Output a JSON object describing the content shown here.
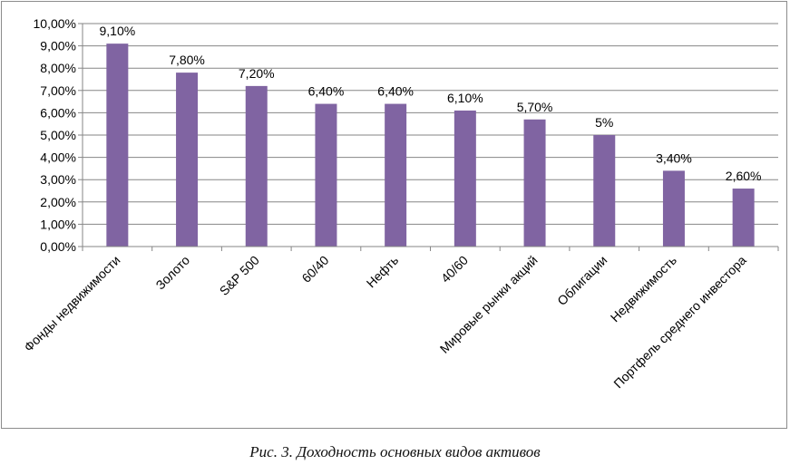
{
  "chart_data": {
    "type": "bar",
    "categories": [
      "Фонды недвижимости",
      "Золото",
      "S&P 500",
      "60/40",
      "Нефть",
      "40/60",
      "Мировые рынки акций",
      "Облигации",
      "Недвижимость",
      "Портфель среднего инвестора"
    ],
    "values": [
      9.1,
      7.8,
      7.2,
      6.4,
      6.4,
      6.1,
      5.7,
      5.0,
      3.4,
      2.6
    ],
    "data_labels": [
      "9,10%",
      "7,80%",
      "7,20%",
      "6,40%",
      "6,40%",
      "6,10%",
      "5,70%",
      "5%",
      "3,40%",
      "2,60%"
    ],
    "y_ticks": [
      0,
      1,
      2,
      3,
      4,
      5,
      6,
      7,
      8,
      9,
      10
    ],
    "y_tick_labels": [
      "0,00%",
      "1,00%",
      "2,00%",
      "3,00%",
      "4,00%",
      "5,00%",
      "6,00%",
      "7,00%",
      "8,00%",
      "9,00%",
      "10,00%"
    ],
    "ylim": [
      0,
      10
    ],
    "grid": true,
    "legend": "none",
    "bar_color": "#8064a2",
    "grid_color": "#868686"
  },
  "caption": "Рис. 3. Доходность основных видов активов"
}
